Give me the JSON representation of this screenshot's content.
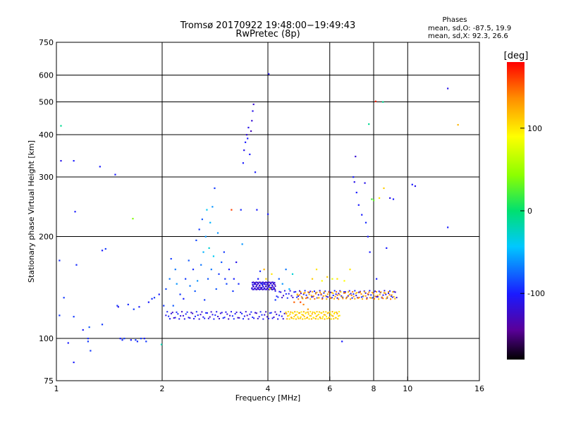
{
  "header": {
    "title_line1": "Tromsø 20170922 19:48:00−19:49:43",
    "title_line2": "RwPretec (8p)",
    "phases_title": "Phases",
    "phases_line1": "mean, sd,O: -87.5, 19.9",
    "phases_line2": "mean, sd,X:  92.3, 26.6"
  },
  "colorbar": {
    "unit_label": "[deg]",
    "min": -180,
    "max": 180,
    "ticks": [
      {
        "value": 100,
        "label": "100"
      },
      {
        "value": 0,
        "label": "0"
      },
      {
        "value": -100,
        "label": "-100"
      }
    ]
  },
  "chart_data": {
    "type": "scatter",
    "xlabel": "Frequency [MHz]",
    "ylabel": "Stationary phase Virtual Height [km]",
    "x_scale": "log",
    "y_scale": "log",
    "xlim": [
      1,
      16
    ],
    "ylim": [
      75,
      750
    ],
    "x_ticks": [
      {
        "value": 1,
        "label": "1"
      },
      {
        "value": 2,
        "label": "2"
      },
      {
        "value": 4,
        "label": "4"
      },
      {
        "value": 6,
        "label": "6"
      },
      {
        "value": 8,
        "label": "8"
      },
      {
        "value": 10,
        "label": "10"
      },
      {
        "value": 16,
        "label": "16"
      }
    ],
    "y_ticks": [
      {
        "value": 75,
        "label": "75"
      },
      {
        "value": 100,
        "label": "100"
      },
      {
        "value": 200,
        "label": "200"
      },
      {
        "value": 300,
        "label": "300"
      },
      {
        "value": 400,
        "label": "400"
      },
      {
        "value": 500,
        "label": "500"
      },
      {
        "value": 600,
        "label": "600"
      },
      {
        "value": 750,
        "label": "750"
      }
    ],
    "grid": true,
    "color_variable": "phase [deg]",
    "points": [
      [
        1.02,
        117,
        -90
      ],
      [
        1.02,
        170,
        -95
      ],
      [
        1.03,
        335,
        -110
      ],
      [
        1.03,
        425,
        -10
      ],
      [
        1.05,
        132,
        -90
      ],
      [
        1.08,
        97,
        -100
      ],
      [
        1.12,
        85,
        -100
      ],
      [
        1.12,
        335,
        -100
      ],
      [
        1.12,
        116,
        -90
      ],
      [
        1.13,
        237,
        -100
      ],
      [
        1.14,
        165,
        -95
      ],
      [
        1.19,
        106,
        -100
      ],
      [
        1.23,
        100,
        -95
      ],
      [
        1.23,
        98,
        -90
      ],
      [
        1.24,
        108,
        -80
      ],
      [
        1.25,
        92,
        -90
      ],
      [
        1.33,
        322,
        -100
      ],
      [
        1.35,
        110,
        -90
      ],
      [
        1.35,
        182,
        -100
      ],
      [
        1.38,
        184,
        -90
      ],
      [
        1.47,
        305,
        -100
      ],
      [
        1.49,
        125,
        -90
      ],
      [
        1.5,
        124,
        -110
      ],
      [
        1.52,
        100,
        -100
      ],
      [
        1.54,
        99,
        -95
      ],
      [
        1.56,
        100,
        -90
      ],
      [
        1.6,
        126,
        -95
      ],
      [
        1.63,
        99,
        -100
      ],
      [
        1.65,
        226,
        40
      ],
      [
        1.66,
        122,
        -90
      ],
      [
        1.68,
        99,
        -90
      ],
      [
        1.7,
        98,
        -95
      ],
      [
        1.72,
        124,
        -100
      ],
      [
        1.74,
        100,
        -90
      ],
      [
        1.78,
        100,
        -100
      ],
      [
        1.8,
        98,
        -90
      ],
      [
        1.83,
        128,
        -100
      ],
      [
        1.87,
        131,
        -95
      ],
      [
        1.9,
        132,
        -90
      ],
      [
        1.96,
        135,
        -100
      ],
      [
        1.99,
        96,
        -20
      ],
      [
        2.02,
        125,
        -90
      ],
      [
        2.05,
        140,
        -85
      ],
      [
        2.1,
        150,
        -70
      ],
      [
        2.12,
        172,
        -90
      ],
      [
        2.15,
        125,
        -80
      ],
      [
        2.18,
        160,
        -70
      ],
      [
        2.2,
        145,
        -60
      ],
      [
        2.25,
        135,
        -90
      ],
      [
        2.3,
        131,
        -100
      ],
      [
        2.33,
        150,
        -90
      ],
      [
        2.38,
        170,
        -80
      ],
      [
        2.4,
        143,
        -70
      ],
      [
        2.45,
        160,
        -95
      ],
      [
        2.48,
        138,
        -80
      ],
      [
        2.5,
        195,
        -85
      ],
      [
        2.52,
        148,
        -60
      ],
      [
        2.55,
        210,
        -90
      ],
      [
        2.58,
        165,
        -70
      ],
      [
        2.6,
        225,
        -80
      ],
      [
        2.62,
        180,
        -50
      ],
      [
        2.64,
        130,
        -90
      ],
      [
        2.66,
        200,
        -60
      ],
      [
        2.68,
        240,
        -40
      ],
      [
        2.7,
        150,
        -80
      ],
      [
        2.72,
        185,
        -30
      ],
      [
        2.74,
        220,
        -50
      ],
      [
        2.76,
        160,
        -70
      ],
      [
        2.78,
        245,
        -60
      ],
      [
        2.8,
        175,
        -40
      ],
      [
        2.82,
        278,
        -90
      ],
      [
        2.85,
        140,
        -80
      ],
      [
        2.88,
        205,
        -60
      ],
      [
        2.9,
        155,
        -90
      ],
      [
        2.95,
        168,
        -80
      ],
      [
        3.0,
        180,
        -90
      ],
      [
        3.02,
        150,
        -95
      ],
      [
        3.05,
        145,
        -85
      ],
      [
        3.1,
        160,
        -100
      ],
      [
        3.15,
        240,
        160
      ],
      [
        3.18,
        138,
        -90
      ],
      [
        3.2,
        150,
        -100
      ],
      [
        3.25,
        168,
        -110
      ],
      [
        3.3,
        145,
        -95
      ],
      [
        3.35,
        240,
        -95
      ],
      [
        3.38,
        190,
        -60
      ],
      [
        3.4,
        330,
        -100
      ],
      [
        3.42,
        360,
        -110
      ],
      [
        3.45,
        380,
        -100
      ],
      [
        3.48,
        400,
        -120
      ],
      [
        3.5,
        390,
        -100
      ],
      [
        3.52,
        420,
        -110
      ],
      [
        3.55,
        350,
        -100
      ],
      [
        3.58,
        410,
        -130
      ],
      [
        3.6,
        440,
        -120
      ],
      [
        3.62,
        470,
        -110
      ],
      [
        3.64,
        492,
        -120
      ],
      [
        3.68,
        310,
        -100
      ],
      [
        3.72,
        240,
        -100
      ],
      [
        3.75,
        150,
        -100
      ],
      [
        3.8,
        158,
        -95
      ],
      [
        3.85,
        145,
        -90
      ],
      [
        3.9,
        160,
        120
      ],
      [
        3.95,
        150,
        110
      ],
      [
        4.0,
        233,
        -100
      ],
      [
        4.02,
        605,
        -110
      ],
      [
        4.05,
        140,
        80
      ],
      [
        4.1,
        155,
        100
      ],
      [
        4.2,
        130,
        -90
      ],
      [
        4.3,
        150,
        -80
      ],
      [
        4.4,
        145,
        -60
      ],
      [
        4.5,
        160,
        -70
      ],
      [
        4.6,
        140,
        -50
      ],
      [
        4.7,
        155,
        -30
      ],
      [
        4.75,
        128,
        150
      ],
      [
        4.85,
        135,
        120
      ],
      [
        4.95,
        128,
        160
      ],
      [
        5.05,
        126,
        140
      ],
      [
        5.2,
        122,
        130
      ],
      [
        5.35,
        150,
        110
      ],
      [
        5.5,
        160,
        100
      ],
      [
        5.7,
        148,
        90
      ],
      [
        5.9,
        152,
        110
      ],
      [
        6.1,
        150,
        80
      ],
      [
        6.3,
        150,
        100
      ],
      [
        6.5,
        98,
        -100
      ],
      [
        6.6,
        148,
        90
      ],
      [
        6.85,
        160,
        100
      ],
      [
        7.0,
        300,
        -100
      ],
      [
        7.05,
        290,
        -110
      ],
      [
        7.1,
        345,
        -120
      ],
      [
        7.15,
        270,
        -100
      ],
      [
        7.25,
        248,
        -100
      ],
      [
        7.4,
        232,
        -100
      ],
      [
        7.55,
        288,
        -110
      ],
      [
        7.6,
        220,
        -95
      ],
      [
        7.7,
        200,
        -100
      ],
      [
        7.75,
        430,
        -10
      ],
      [
        7.8,
        180,
        -100
      ],
      [
        7.9,
        258,
        20
      ],
      [
        8.0,
        256,
        30
      ],
      [
        8.1,
        502,
        170
      ],
      [
        8.15,
        150,
        -100
      ],
      [
        8.3,
        260,
        100
      ],
      [
        8.5,
        500,
        -10
      ],
      [
        8.55,
        278,
        110
      ],
      [
        8.7,
        185,
        -100
      ],
      [
        8.9,
        260,
        -110
      ],
      [
        9.1,
        258,
        -100
      ],
      [
        10.3,
        285,
        -100
      ],
      [
        10.5,
        282,
        -110
      ],
      [
        13.0,
        548,
        -110
      ],
      [
        13.0,
        213,
        -100
      ],
      [
        13.9,
        428,
        120
      ]
    ],
    "bands": [
      {
        "from": 2.05,
        "to": 4.5,
        "height": 117,
        "color": -110
      },
      {
        "from": 4.5,
        "to": 6.4,
        "height": 117,
        "color": 110
      },
      {
        "from": 4.2,
        "to": 9.3,
        "height": 135,
        "color": -110
      },
      {
        "from": 4.85,
        "to": 9.2,
        "height": 134,
        "color": 130
      },
      {
        "from": 3.6,
        "to": 4.2,
        "height": 143,
        "color": -120
      }
    ]
  }
}
